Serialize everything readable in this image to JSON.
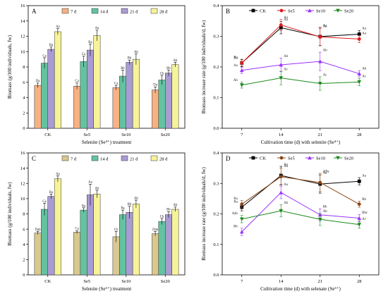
{
  "chart_data": [
    {
      "panel": "A",
      "type": "bar",
      "xlabel": "Selenite (Se⁴⁺) treatment",
      "ylabel": "Biomass (g/100 individuals, fw)",
      "ylim": [
        0,
        16
      ],
      "yticks": [
        0,
        2,
        4,
        6,
        8,
        10,
        12,
        14,
        16
      ],
      "legend_position": "top",
      "categories": [
        "CK",
        "Se5",
        "Se10",
        "Se20"
      ],
      "series": [
        {
          "name": "7 d",
          "color": "#f7b183",
          "values": [
            5.6,
            5.5,
            5.3,
            5.0
          ],
          "errors": [
            0.3,
            0.4,
            0.3,
            0.4
          ],
          "letters": [
            "Da",
            "Ca",
            "Ca",
            "Da"
          ]
        },
        {
          "name": "14 d",
          "color": "#63c3a0",
          "values": [
            8.5,
            8.7,
            6.8,
            6.3
          ],
          "errors": [
            0.7,
            0.7,
            0.8,
            0.6
          ],
          "letters": [
            "Ca",
            "Ca",
            "Bb",
            "Cb"
          ]
        },
        {
          "name": "21 d",
          "color": "#a99bd3",
          "values": [
            10.3,
            10.2,
            8.6,
            7.2
          ],
          "errors": [
            0.3,
            0.8,
            0.3,
            0.4
          ],
          "letters": [
            "Ba",
            "Ba",
            "Bb",
            "Bb"
          ]
        },
        {
          "name": "28 d",
          "color": "#f7f39a",
          "values": [
            12.6,
            12.1,
            9.0,
            8.3
          ],
          "errors": [
            0.4,
            0.7,
            0.7,
            0.3
          ],
          "letters": [
            "Aa",
            "Aa",
            "Ab",
            "Ab"
          ]
        }
      ]
    },
    {
      "panel": "B",
      "type": "line",
      "xlabel": "Cultivation time (d) with selenite (Se⁴⁺)",
      "ylabel": "Biomass increase rate (g/100 individuals/d, fw)",
      "ylim": [
        0.0,
        0.4
      ],
      "yticks": [
        0.0,
        0.1,
        0.2,
        0.3,
        0.4
      ],
      "x": [
        7,
        14,
        21,
        28
      ],
      "legend_position": "top",
      "series": [
        {
          "name": "CK",
          "color": "#000000",
          "marker": "square",
          "values": [
            0.213,
            0.328,
            0.299,
            0.307
          ],
          "errors": [
            0.012,
            0.02,
            0.03,
            0.012
          ],
          "letters": [
            "Ba",
            "Aa",
            "Aa",
            "Aa"
          ]
        },
        {
          "name": "Se5",
          "color": "#e31a1c",
          "marker": "circle",
          "values": [
            0.213,
            0.337,
            0.298,
            0.291
          ],
          "errors": [
            0.01,
            0.018,
            0.028,
            0.012
          ],
          "letters": [
            "Ba",
            "Aa",
            "Aa",
            "Aa"
          ]
        },
        {
          "name": "Se10",
          "color": "#9b30ff",
          "marker": "triangle-up",
          "values": [
            0.189,
            0.207,
            0.218,
            0.178
          ],
          "errors": [
            0.01,
            0.022,
            0.03,
            0.01
          ],
          "letters": [
            "Aa",
            "Ab",
            "Ab",
            "Ab"
          ]
        },
        {
          "name": "Se20",
          "color": "#1a8a1a",
          "marker": "triangle-down",
          "values": [
            0.141,
            0.164,
            0.146,
            0.151
          ],
          "errors": [
            0.01,
            0.022,
            0.022,
            0.012
          ],
          "letters": [
            "Ab",
            "Ac",
            "Ac",
            "Ac"
          ]
        }
      ]
    },
    {
      "panel": "C",
      "type": "bar",
      "xlabel": "Selenite (Se⁶⁺) treatment",
      "ylabel": "Biomass (g/100 individuals, fw)",
      "ylim": [
        0,
        16
      ],
      "yticks": [
        0,
        2,
        4,
        6,
        8,
        10,
        12,
        14,
        16
      ],
      "legend_position": "top",
      "categories": [
        "CK",
        "Se5",
        "Se10",
        "Se20"
      ],
      "series": [
        {
          "name": "7 d",
          "color": "#d9c88f",
          "values": [
            5.5,
            5.6,
            5.0,
            5.4
          ],
          "errors": [
            0.2,
            0.2,
            0.7,
            0.3
          ],
          "letters": [
            "Dab",
            "Ca",
            "Cb",
            "Dab"
          ]
        },
        {
          "name": "14 d",
          "color": "#63c3a0",
          "values": [
            8.6,
            8.5,
            7.9,
            7.0
          ],
          "errors": [
            0.8,
            0.3,
            0.6,
            0.4
          ],
          "letters": [
            "Ca",
            "Ba",
            "Ba",
            "Cb"
          ]
        },
        {
          "name": "21 d",
          "color": "#a99bd3",
          "values": [
            10.3,
            10.5,
            8.2,
            7.9
          ],
          "errors": [
            0.3,
            1.4,
            0.8,
            0.4
          ],
          "letters": [
            "Ba",
            "Aa",
            "Bb",
            "Bb"
          ]
        },
        {
          "name": "28 d",
          "color": "#f7f39a",
          "values": [
            12.6,
            10.6,
            9.3,
            8.6
          ],
          "errors": [
            0.4,
            0.5,
            0.5,
            0.3
          ],
          "letters": [
            "Aa",
            "Ab",
            "Ab",
            "Ab"
          ]
        }
      ]
    },
    {
      "panel": "D",
      "type": "line",
      "xlabel": "Cultivation time (d) with selenate (Se⁶⁺)",
      "ylabel": "Biomass increase rate (g/100 individuals/d, fw)",
      "ylim": [
        0.0,
        0.4
      ],
      "yticks": [
        0.0,
        0.1,
        0.2,
        0.3,
        0.4
      ],
      "x": [
        7,
        14,
        21,
        28
      ],
      "legend_position": "top",
      "series": [
        {
          "name": "CK",
          "color": "#000000",
          "marker": "square",
          "values": [
            0.222,
            0.326,
            0.298,
            0.307
          ],
          "errors": [
            0.012,
            0.03,
            0.03,
            0.012
          ],
          "letters": [
            "Ba",
            "Aa",
            "Aa",
            "Aa"
          ]
        },
        {
          "name": "Se5",
          "color": "#8b4513",
          "marker": "circle",
          "values": [
            0.232,
            0.322,
            0.303,
            0.232
          ],
          "errors": [
            0.012,
            0.028,
            0.03,
            0.01
          ],
          "letters": [
            "Ba",
            "Aa",
            "ABa",
            "Bb"
          ]
        },
        {
          "name": "Se10",
          "color": "#9b30ff",
          "marker": "triangle-up",
          "values": [
            0.141,
            0.27,
            0.197,
            0.186
          ],
          "errors": [
            0.012,
            0.02,
            0.02,
            0.012
          ],
          "letters": [
            "Bb",
            "Aa",
            "Bb",
            "Bbc"
          ]
        },
        {
          "name": "Se20",
          "color": "#1a8a1a",
          "marker": "triangle-down",
          "values": [
            0.183,
            0.21,
            0.182,
            0.165
          ],
          "errors": [
            0.012,
            0.02,
            0.02,
            0.012
          ],
          "letters": [
            "Aab",
            "Ab",
            "Ab",
            "Ac"
          ]
        }
      ]
    }
  ]
}
